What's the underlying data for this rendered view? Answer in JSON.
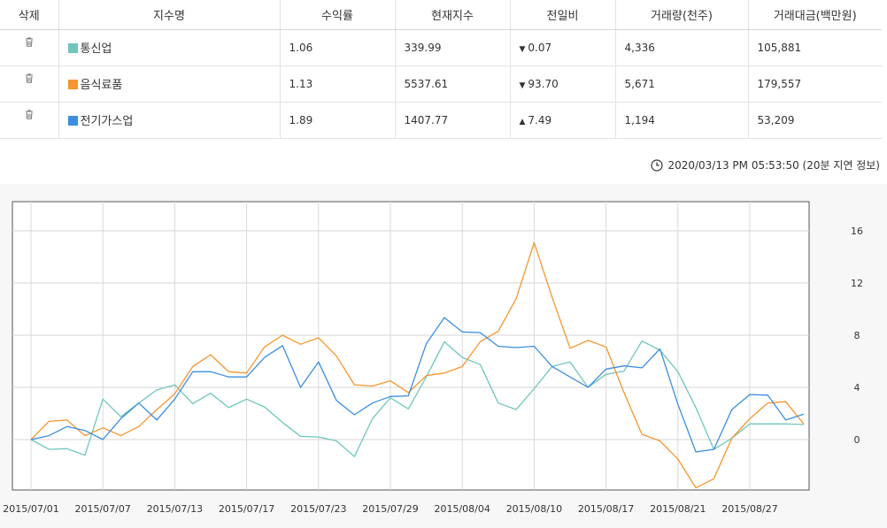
{
  "table": {
    "headers": [
      "삭제",
      "지수명",
      "수익률",
      "현재지수",
      "전일비",
      "거래량(천주)",
      "거래대금(백만원)"
    ],
    "rows": [
      {
        "name": "통신업",
        "color": "#6fc7bc",
        "yield": "1.06",
        "index": "339.99",
        "dir": "down",
        "change": "0.07",
        "volume": "4,336",
        "amount": "105,881"
      },
      {
        "name": "음식료품",
        "color": "#f5962f",
        "yield": "1.13",
        "index": "5537.61",
        "dir": "down",
        "change": "93.70",
        "volume": "5,671",
        "amount": "179,557"
      },
      {
        "name": "전기가스업",
        "color": "#3b8ee0",
        "yield": "1.89",
        "index": "1407.77",
        "dir": "up",
        "change": "7.49",
        "volume": "1,194",
        "amount": "53,209"
      }
    ],
    "delete_icon": "trash-icon"
  },
  "timestamp": "2020/03/13 PM 05:53:50 (20분 지연 정보)",
  "chart_data": {
    "type": "line",
    "x_labels": [
      "2015/07/01",
      "2015/07/07",
      "2015/07/13",
      "2015/07/17",
      "2015/07/23",
      "2015/07/29",
      "2015/08/04",
      "2015/08/10",
      "2015/08/17",
      "2015/08/21",
      "2015/08/27"
    ],
    "ylim": [
      -4,
      18
    ],
    "yticks": [
      0,
      4,
      8,
      12,
      16
    ],
    "grid": true,
    "series": [
      {
        "name": "통신업",
        "color": "#6fc7bc",
        "values": [
          0.0,
          -0.75,
          -0.7,
          -1.2,
          3.1,
          1.75,
          2.8,
          3.8,
          4.2,
          2.75,
          3.55,
          2.45,
          3.1,
          2.5,
          1.3,
          0.25,
          0.2,
          -0.1,
          -1.3,
          1.6,
          3.2,
          2.35,
          4.8,
          7.5,
          6.3,
          5.75,
          2.8,
          2.3,
          3.9,
          5.6,
          5.95,
          4.0,
          5.0,
          5.25,
          7.55,
          6.85,
          5.2,
          2.45,
          -0.75,
          0.1,
          1.2,
          1.2,
          1.2,
          1.15
        ]
      },
      {
        "name": "음식료품",
        "color": "#f5962f",
        "values": [
          0.0,
          1.4,
          1.5,
          0.3,
          0.9,
          0.3,
          1.0,
          2.3,
          3.5,
          5.6,
          6.5,
          5.2,
          5.1,
          7.1,
          8.0,
          7.3,
          7.8,
          6.4,
          4.2,
          4.1,
          4.5,
          3.6,
          4.9,
          5.1,
          5.6,
          7.5,
          8.3,
          10.8,
          15.1,
          10.9,
          7.0,
          7.6,
          7.1,
          3.6,
          0.4,
          -0.1,
          -1.5,
          -3.7,
          -3.0,
          0.1,
          1.6,
          2.8,
          2.9,
          1.2
        ]
      },
      {
        "name": "전기가스업",
        "color": "#3b8ee0",
        "values": [
          0.0,
          0.3,
          1.0,
          0.7,
          0.0,
          1.6,
          2.8,
          1.5,
          3.1,
          5.2,
          5.2,
          4.8,
          4.8,
          6.3,
          7.2,
          4.0,
          5.95,
          3.0,
          1.9,
          2.8,
          3.3,
          3.35,
          7.35,
          9.35,
          8.25,
          8.2,
          7.15,
          7.05,
          7.15,
          5.6,
          4.8,
          4.0,
          5.4,
          5.65,
          5.5,
          6.95,
          2.7,
          -0.95,
          -0.75,
          2.3,
          3.45,
          3.4,
          1.5,
          1.95
        ]
      }
    ]
  }
}
